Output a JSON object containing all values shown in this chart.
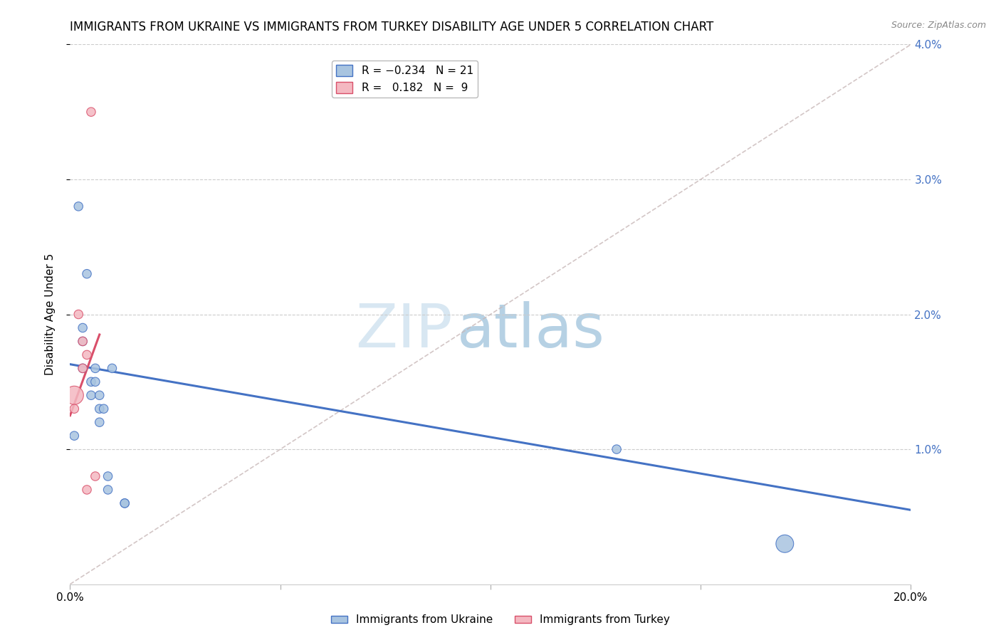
{
  "title": "IMMIGRANTS FROM UKRAINE VS IMMIGRANTS FROM TURKEY DISABILITY AGE UNDER 5 CORRELATION CHART",
  "source": "Source: ZipAtlas.com",
  "ylabel": "Disability Age Under 5",
  "legend_ukraine": "Immigrants from Ukraine",
  "legend_turkey": "Immigrants from Turkey",
  "color_ukraine": "#a8c4e0",
  "color_ukraine_line": "#4472c4",
  "color_turkey": "#f4b8c1",
  "color_turkey_line": "#d94f6a",
  "color_diagonal": "#c8b8b8",
  "watermark_zip": "ZIP",
  "watermark_atlas": "atlas",
  "xlim": [
    0.0,
    0.2
  ],
  "ylim": [
    0.0,
    0.04
  ],
  "title_fontsize": 12,
  "axis_label_fontsize": 11,
  "tick_fontsize": 11,
  "background_color": "#ffffff",
  "grid_color": "#cccccc",
  "ukraine_x": [
    0.001,
    0.002,
    0.003,
    0.003,
    0.003,
    0.004,
    0.005,
    0.005,
    0.006,
    0.006,
    0.007,
    0.007,
    0.007,
    0.008,
    0.009,
    0.009,
    0.01,
    0.013,
    0.013,
    0.13,
    0.17
  ],
  "ukraine_y": [
    0.011,
    0.028,
    0.019,
    0.018,
    0.016,
    0.023,
    0.015,
    0.014,
    0.016,
    0.015,
    0.014,
    0.013,
    0.012,
    0.013,
    0.008,
    0.007,
    0.016,
    0.006,
    0.006,
    0.01,
    0.003
  ],
  "ukraine_sizes": [
    80,
    80,
    80,
    80,
    80,
    80,
    80,
    80,
    80,
    80,
    80,
    80,
    80,
    80,
    80,
    80,
    80,
    80,
    80,
    80,
    320
  ],
  "turkey_x": [
    0.001,
    0.001,
    0.002,
    0.003,
    0.003,
    0.004,
    0.004,
    0.005,
    0.006
  ],
  "turkey_y": [
    0.014,
    0.013,
    0.02,
    0.018,
    0.016,
    0.017,
    0.007,
    0.035,
    0.008
  ],
  "turkey_sizes": [
    350,
    80,
    80,
    80,
    80,
    80,
    80,
    80,
    80
  ],
  "ukraine_line_x": [
    0.0,
    0.2
  ],
  "ukraine_line_y": [
    0.0163,
    0.0055
  ],
  "turkey_line_x": [
    0.0,
    0.007
  ],
  "turkey_line_y": [
    0.0125,
    0.0185
  ]
}
